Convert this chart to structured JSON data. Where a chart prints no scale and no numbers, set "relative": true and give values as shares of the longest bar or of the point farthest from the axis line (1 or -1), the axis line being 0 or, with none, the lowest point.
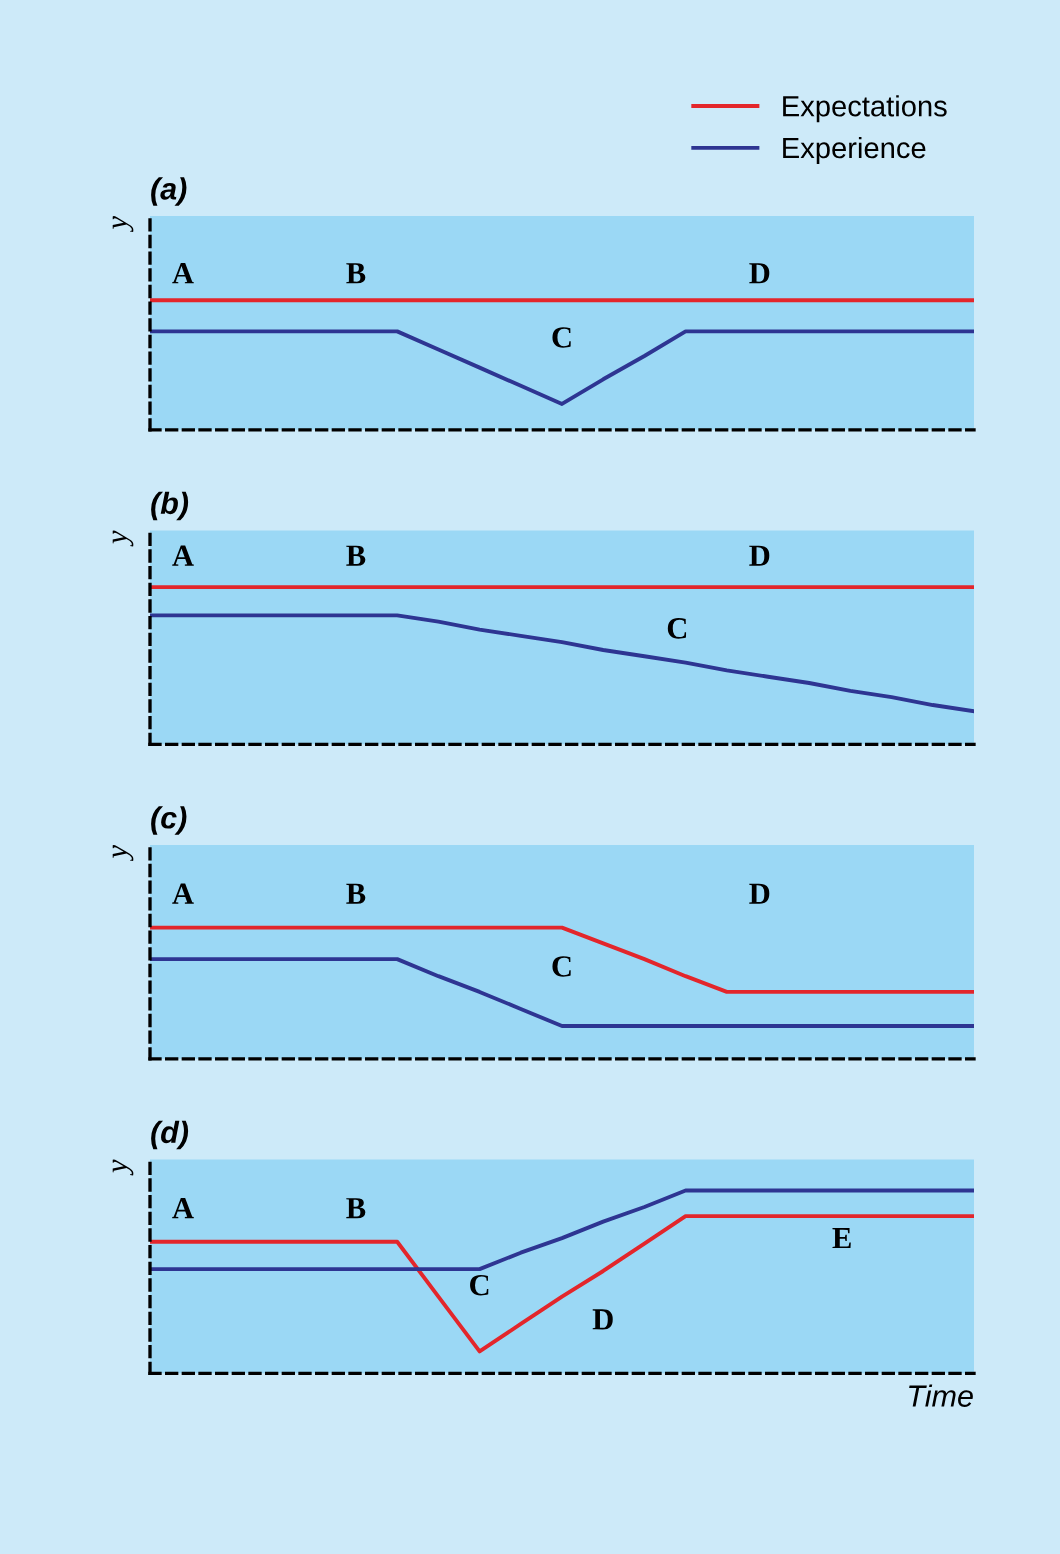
{
  "chart_data": [
    {
      "type": "line",
      "title": "(a)",
      "ylabel": "y",
      "relative": true,
      "legend": "top right",
      "categories": [
        null,
        null,
        null,
        null,
        null,
        null,
        null,
        null,
        null,
        null,
        null,
        null,
        null,
        null,
        null,
        null,
        null,
        null,
        null,
        null,
        null
      ],
      "series": [
        {
          "name": "Expectations",
          "color": "#e3262b",
          "values": [
            1,
            1,
            1,
            1,
            1,
            1,
            1,
            1,
            1,
            1,
            1,
            1,
            1,
            1,
            1,
            1,
            1,
            1,
            1,
            1,
            1
          ]
        },
        {
          "name": "Experience",
          "color": "#2e3592",
          "values": [
            0.76,
            0.76,
            0.76,
            0.76,
            0.76,
            0.76,
            0.76,
            0.62,
            0.48,
            0.34,
            0.2,
            0.39,
            0.57,
            0.76,
            0.76,
            0.76,
            0.76,
            0.76,
            0.76,
            0.76,
            0.76
          ]
        }
      ],
      "annotations": [
        "A",
        "B",
        "C",
        "D"
      ]
    },
    {
      "type": "line",
      "title": "(b)",
      "ylabel": "y",
      "relative": true,
      "categories": [
        null,
        null,
        null,
        null,
        null,
        null,
        null,
        null,
        null,
        null,
        null,
        null,
        null,
        null,
        null,
        null,
        null,
        null,
        null,
        null,
        null
      ],
      "series": [
        {
          "color": "#e3262b",
          "values": [
            1,
            1,
            1,
            1,
            1,
            1,
            1,
            1,
            1,
            1,
            1,
            1,
            1,
            1,
            1,
            1,
            1,
            1,
            1,
            1,
            1
          ]
        },
        {
          "color": "#2e3592",
          "values": [
            0.82,
            0.82,
            0.82,
            0.82,
            0.82,
            0.82,
            0.82,
            0.78,
            0.73,
            0.69,
            0.65,
            0.6,
            0.56,
            0.52,
            0.47,
            0.43,
            0.39,
            0.34,
            0.3,
            0.25,
            0.21
          ]
        }
      ],
      "annotations": [
        "A",
        "B",
        "C",
        "D"
      ]
    },
    {
      "type": "line",
      "title": "(c)",
      "ylabel": "y",
      "relative": true,
      "categories": [
        null,
        null,
        null,
        null,
        null,
        null,
        null,
        null,
        null,
        null,
        null,
        null,
        null,
        null,
        null,
        null,
        null,
        null,
        null,
        null,
        null
      ],
      "series": [
        {
          "color": "#e3262b",
          "values": [
            1,
            1,
            1,
            1,
            1,
            1,
            1,
            1,
            1,
            1,
            1,
            0.88,
            0.76,
            0.63,
            0.51,
            0.51,
            0.51,
            0.51,
            0.51,
            0.51,
            0.51
          ]
        },
        {
          "color": "#2e3592",
          "values": [
            0.76,
            0.76,
            0.76,
            0.76,
            0.76,
            0.76,
            0.76,
            0.63,
            0.51,
            0.38,
            0.25,
            0.25,
            0.25,
            0.25,
            0.25,
            0.25,
            0.25,
            0.25,
            0.25,
            0.25,
            0.25
          ]
        }
      ],
      "annotations": [
        "A",
        "B",
        "C",
        "D"
      ]
    },
    {
      "type": "line",
      "title": "(d)",
      "ylabel": "y",
      "xlabel": "Time",
      "relative": true,
      "categories": [
        null,
        null,
        null,
        null,
        null,
        null,
        null,
        null,
        null,
        null,
        null,
        null,
        null,
        null,
        null,
        null,
        null,
        null,
        null,
        null,
        null
      ],
      "series": [
        {
          "color": "#e3262b",
          "values": [
            0.72,
            0.72,
            0.72,
            0.72,
            0.72,
            0.72,
            0.72,
            0.42,
            0.12,
            0.27,
            0.42,
            0.56,
            0.71,
            0.86,
            0.86,
            0.86,
            0.86,
            0.86,
            0.86,
            0.86,
            0.86
          ]
        },
        {
          "color": "#2e3592",
          "values": [
            0.57,
            0.57,
            0.57,
            0.57,
            0.57,
            0.57,
            0.57,
            0.57,
            0.57,
            0.66,
            0.74,
            0.83,
            0.91,
            1,
            1,
            1,
            1,
            1,
            1,
            1,
            1
          ]
        }
      ],
      "annotations": [
        "A",
        "B",
        "C",
        "D",
        "E"
      ]
    }
  ]
}
